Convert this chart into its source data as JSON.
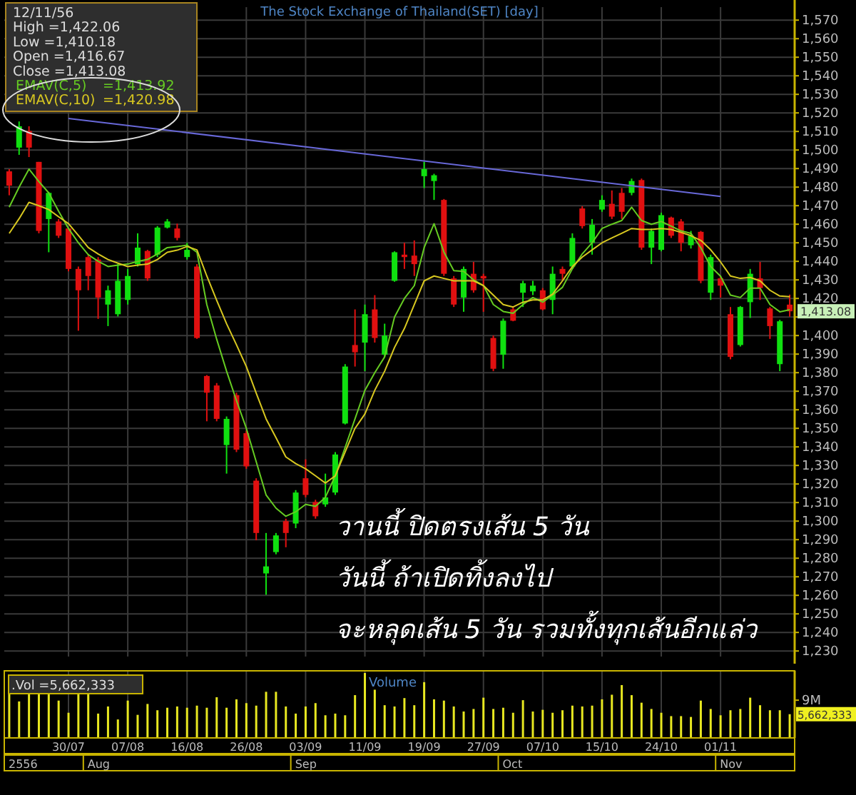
{
  "chart_data": [
    {
      "type": "candlestick",
      "title": "The Stock Exchange of Thailand(SET) [day]",
      "categories": [
        null,
        null,
        null,
        null,
        null,
        null,
        "30/07",
        null,
        null,
        null,
        null,
        null,
        "07/08",
        null,
        null,
        null,
        null,
        null,
        "16/08",
        null,
        null,
        null,
        null,
        null,
        "26/08",
        null,
        null,
        null,
        null,
        null,
        "03/09",
        null,
        null,
        null,
        null,
        null,
        "11/09",
        null,
        null,
        null,
        null,
        null,
        "19/09",
        null,
        null,
        null,
        null,
        null,
        "27/09",
        null,
        null,
        null,
        null,
        null,
        "07/10",
        null,
        null,
        null,
        null,
        null,
        "15/10",
        null,
        null,
        null,
        null,
        null,
        "24/10",
        null,
        null,
        null,
        null,
        null,
        "01/11",
        null,
        null,
        null,
        null,
        null,
        null,
        null
      ],
      "ohlc": [
        [
          1488.5,
          1489.7,
          1475.6,
          1480.8
        ],
        [
          1501.3,
          1515.4,
          1497.4,
          1512.8
        ],
        [
          1510.3,
          1512.8,
          1496.2,
          1501.3
        ],
        [
          1493.6,
          1493.6,
          1455.1,
          1456.4
        ],
        [
          1462.8,
          1477.4,
          1444.9,
          1476.9
        ],
        [
          1461.5,
          1462.8,
          1452.6,
          1453.8
        ],
        [
          1457.7,
          1458.2,
          1434.6,
          1435.9
        ],
        [
          1435.9,
          1437.2,
          1402.6,
          1424.4
        ],
        [
          1442.3,
          1443.6,
          1424.4,
          1432.1
        ],
        [
          1441.0,
          1442.3,
          1409.0,
          1420.5
        ],
        [
          1416.7,
          1426.9,
          1405.1,
          1424.4
        ],
        [
          1411.5,
          1438.5,
          1410.3,
          1429.5
        ],
        [
          1419.2,
          1435.9,
          1416.7,
          1432.1
        ],
        [
          1438.5,
          1455.1,
          1437.2,
          1447.4
        ],
        [
          1445.6,
          1446.2,
          1429.5,
          1430.8
        ],
        [
          1443.6,
          1459.0,
          1442.3,
          1458.2
        ],
        [
          1458.2,
          1462.8,
          1457.7,
          1461.5
        ],
        [
          1457.7,
          1460.3,
          1451.3,
          1452.6
        ],
        [
          1442.3,
          1450.0,
          1441.0,
          1446.2
        ],
        [
          1437.2,
          1438.5,
          1398.2,
          1398.7
        ],
        [
          1378.2,
          1378.7,
          1353.8,
          1369.2
        ],
        [
          1373.1,
          1374.4,
          1353.8,
          1355.1
        ],
        [
          1341.0,
          1356.4,
          1325.6,
          1355.1
        ],
        [
          1367.9,
          1369.2,
          1337.2,
          1338.5
        ],
        [
          1347.4,
          1348.7,
          1328.2,
          1329.5
        ],
        [
          1321.8,
          1323.1,
          1289.7,
          1293.6
        ],
        [
          1271.8,
          1293.6,
          1260.3,
          1275.6
        ],
        [
          1283.3,
          1293.6,
          1282.1,
          1292.3
        ],
        [
          1300.0,
          1301.3,
          1285.9,
          1293.6
        ],
        [
          1298.7,
          1316.7,
          1296.2,
          1315.4
        ],
        [
          1323.1,
          1333.3,
          1312.8,
          1314.1
        ],
        [
          1310.3,
          1311.5,
          1301.3,
          1302.6
        ],
        [
          1309.0,
          1325.6,
          1307.7,
          1312.8
        ],
        [
          1315.4,
          1337.2,
          1314.1,
          1335.9
        ],
        [
          1352.6,
          1384.6,
          1352.1,
          1383.3
        ],
        [
          1394.9,
          1414.1,
          1383.3,
          1391.0
        ],
        [
          1396.2,
          1416.7,
          1380.8,
          1411.5
        ],
        [
          1414.1,
          1421.8,
          1396.2,
          1398.7
        ],
        [
          1389.7,
          1406.4,
          1388.5,
          1400.0
        ],
        [
          1429.5,
          1445.4,
          1429.0,
          1444.9
        ],
        [
          1443.6,
          1450.0,
          1435.9,
          1442.3
        ],
        [
          1443.1,
          1451.3,
          1432.1,
          1438.5
        ],
        [
          1485.9,
          1493.6,
          1479.5,
          1489.7
        ],
        [
          1483.3,
          1487.2,
          1473.1,
          1486.4
        ],
        [
          1473.1,
          1473.6,
          1432.1,
          1433.3
        ],
        [
          1430.8,
          1432.1,
          1415.4,
          1416.7
        ],
        [
          1420.5,
          1437.2,
          1412.8,
          1435.9
        ],
        [
          1433.3,
          1439.7,
          1423.1,
          1424.4
        ],
        [
          1432.1,
          1433.3,
          1412.8,
          1430.8
        ],
        [
          1398.7,
          1400.0,
          1380.8,
          1382.1
        ],
        [
          1389.7,
          1409.2,
          1382.1,
          1408.0
        ],
        [
          1414.1,
          1415.4,
          1407.7,
          1408.0
        ],
        [
          1423.1,
          1429.5,
          1415.4,
          1428.2
        ],
        [
          1423.8,
          1429.5,
          1421.8,
          1426.9
        ],
        [
          1424.4,
          1425.6,
          1413.6,
          1414.1
        ],
        [
          1419.2,
          1437.2,
          1411.5,
          1433.3
        ],
        [
          1435.9,
          1437.2,
          1429.5,
          1433.3
        ],
        [
          1437.2,
          1455.1,
          1435.9,
          1452.6
        ],
        [
          1468.5,
          1469.7,
          1457.7,
          1459.0
        ],
        [
          1450.0,
          1462.8,
          1443.6,
          1459.7
        ],
        [
          1467.9,
          1475.6,
          1466.7,
          1473.1
        ],
        [
          1471.0,
          1478.2,
          1462.8,
          1464.1
        ],
        [
          1476.9,
          1479.5,
          1462.8,
          1466.7
        ],
        [
          1476.9,
          1484.6,
          1475.6,
          1483.3
        ],
        [
          1483.8,
          1484.6,
          1446.2,
          1447.4
        ],
        [
          1447.4,
          1457.7,
          1438.5,
          1456.4
        ],
        [
          1446.2,
          1466.2,
          1445.4,
          1464.9
        ],
        [
          1463.6,
          1464.1,
          1452.6,
          1453.8
        ],
        [
          1461.5,
          1462.8,
          1445.4,
          1450.0
        ],
        [
          1448.7,
          1456.4,
          1446.9,
          1453.8
        ],
        [
          1455.9,
          1456.4,
          1428.2,
          1429.5
        ],
        [
          1423.1,
          1443.6,
          1419.2,
          1442.3
        ],
        [
          1430.8,
          1432.1,
          1420.5,
          1426.9
        ],
        [
          1411.5,
          1415.4,
          1387.2,
          1388.5
        ],
        [
          1394.9,
          1415.9,
          1394.1,
          1415.4
        ],
        [
          1418.0,
          1435.9,
          1409.5,
          1433.3
        ],
        [
          1430.8,
          1439.7,
          1419.2,
          1425.6
        ],
        [
          1414.6,
          1415.4,
          1398.2,
          1405.1
        ],
        [
          1384.6,
          1408.5,
          1380.8,
          1407.7
        ],
        [
          1416.67,
          1422.06,
          1410.18,
          1413.08
        ]
      ],
      "colors": [
        "#e01010",
        "#10e010",
        "#e01010",
        "#e01010",
        "#10e010",
        "#e01010",
        "#e01010",
        "#e01010",
        "#e01010",
        "#e01010",
        "#10e010",
        "#10e010",
        "#10e010",
        "#10e010",
        "#e01010",
        "#10e010",
        "#10e010",
        "#e01010",
        "#10e010",
        "#e01010",
        "#e01010",
        "#e01010",
        "#10e010",
        "#e01010",
        "#e01010",
        "#e01010",
        "#10e010",
        "#10e010",
        "#e01010",
        "#10e010",
        "#e01010",
        "#e01010",
        "#10e010",
        "#10e010",
        "#10e010",
        "#e01010",
        "#10e010",
        "#e01010",
        "#10e010",
        "#10e010",
        "#e01010",
        "#e01010",
        "#10e010",
        "#10e010",
        "#e01010",
        "#e01010",
        "#10e010",
        "#e01010",
        "#e01010",
        "#e01010",
        "#10e010",
        "#e01010",
        "#10e010",
        "#10e010",
        "#e01010",
        "#10e010",
        "#e01010",
        "#10e010",
        "#e01010",
        "#10e010",
        "#10e010",
        "#e01010",
        "#e01010",
        "#10e010",
        "#e01010",
        "#10e010",
        "#10e010",
        "#e01010",
        "#e01010",
        "#10e010",
        "#e01010",
        "#10e010",
        "#e01010",
        "#e01010",
        "#10e010",
        "#10e010",
        "#e01010",
        "#e01010",
        "#10e010",
        "#e01010"
      ],
      "series": [
        {
          "name": "EMAV(C,5)",
          "type": "line",
          "color": "#66cc22",
          "values": [
            1469.2,
            1480,
            1489.7,
            1483,
            1476.9,
            1467,
            1457.7,
            1450,
            1443.6,
            1440,
            1437.2,
            1438,
            1438.5,
            1440,
            1441.0,
            1444,
            1447.4,
            1448,
            1448.7,
            1444.9,
            1416.7,
            1398,
            1380.8,
            1365,
            1350.0,
            1332,
            1314.1,
            1307,
            1302.6,
            1305,
            1309.0,
            1308,
            1312.8,
            1324.4,
            1339.7,
            1355.1,
            1370.5,
            1380,
            1388.5,
            1410,
            1420,
            1426.9,
            1447.4,
            1460.3,
            1445,
            1435,
            1434.6,
            1430,
            1427,
            1416.7,
            1413,
            1412,
            1416.7,
            1420.5,
            1418,
            1421.8,
            1426,
            1436,
            1444,
            1450,
            1457.7,
            1460,
            1462,
            1469.2,
            1462,
            1460,
            1461.5,
            1459,
            1456.4,
            1455.1,
            1447.4,
            1437.2,
            1432,
            1421.8,
            1420.5,
            1425.6,
            1425.6,
            1416.7,
            1412.8,
            1413.92
          ]
        },
        {
          "name": "EMAV(C,10)",
          "type": "line",
          "color": "#d8c820",
          "values": [
            1455.1,
            1463,
            1471.8,
            1470,
            1467.9,
            1464,
            1460.3,
            1454,
            1447.4,
            1444,
            1441.0,
            1439,
            1437.2,
            1438,
            1438.5,
            1441,
            1444.9,
            1446,
            1448.0,
            1446.2,
            1432.1,
            1419,
            1406.4,
            1395,
            1383.3,
            1369,
            1355.1,
            1345,
            1334.6,
            1331,
            1328.2,
            1324.4,
            1320.5,
            1324.4,
            1337.2,
            1350.0,
            1357.7,
            1370.5,
            1380.8,
            1393.6,
            1403.8,
            1416.7,
            1429.5,
            1432.1,
            1430.8,
            1429.5,
            1429.5,
            1429.5,
            1426.9,
            1421.8,
            1416.7,
            1415.4,
            1418.0,
            1419.2,
            1419.2,
            1422.3,
            1429.5,
            1437.2,
            1442.3,
            1446.2,
            1450.0,
            1452.6,
            1455.1,
            1457.7,
            1457.2,
            1457.2,
            1457.7,
            1457.2,
            1455.6,
            1453.8,
            1451.3,
            1446.2,
            1439.7,
            1432.1,
            1430.8,
            1431.3,
            1429.5,
            1424.4,
            1421.3,
            1420.98
          ]
        },
        {
          "type": "line",
          "color": "#6868d8",
          "x": [
            "30/07",
            "01/11"
          ],
          "values": [
            1517,
            1475
          ]
        }
      ],
      "ylim": [
        1227,
        1577
      ],
      "yticks": [
        {
          "value": 1230,
          "label": "1,230"
        },
        {
          "value": 1240,
          "label": "1,240"
        },
        {
          "value": 1250,
          "label": "1,250"
        },
        {
          "value": 1260,
          "label": "1,260"
        },
        {
          "value": 1270,
          "label": "1,270"
        },
        {
          "value": 1280,
          "label": "1,280"
        },
        {
          "value": 1290,
          "label": "1,290"
        },
        {
          "value": 1300,
          "label": "1,300"
        },
        {
          "value": 1310,
          "label": "1,310"
        },
        {
          "value": 1320,
          "label": "1,320"
        },
        {
          "value": 1330,
          "label": "1,330"
        },
        {
          "value": 1340,
          "label": "1,340"
        },
        {
          "value": 1350,
          "label": "1,350"
        },
        {
          "value": 1360,
          "label": "1,360"
        },
        {
          "value": 1370,
          "label": "1,370"
        },
        {
          "value": 1380,
          "label": "1,380"
        },
        {
          "value": 1390,
          "label": "1,390"
        },
        {
          "value": 1400,
          "label": "1,400"
        },
        {
          "value": 1410,
          "label": null
        },
        {
          "value": 1420,
          "label": "1,420"
        },
        {
          "value": 1430,
          "label": "1,430"
        },
        {
          "value": 1440,
          "label": "1,440"
        },
        {
          "value": 1450,
          "label": "1,450"
        },
        {
          "value": 1460,
          "label": "1,460"
        },
        {
          "value": 1470,
          "label": "1,470"
        },
        {
          "value": 1480,
          "label": "1,480"
        },
        {
          "value": 1490,
          "label": "1,490"
        },
        {
          "value": 1500,
          "label": "1,500"
        },
        {
          "value": 1510,
          "label": "1,510"
        },
        {
          "value": 1520,
          "label": "1,520"
        },
        {
          "value": 1530,
          "label": "1,530"
        },
        {
          "value": 1540,
          "label": "1,540"
        },
        {
          "value": 1550,
          "label": "1,550"
        },
        {
          "value": 1560,
          "label": "1,560"
        },
        {
          "value": 1570,
          "label": "1,570"
        }
      ],
      "grid": true,
      "legend": "top left",
      "tick_labels": "y",
      "annotations": [
        "12/11/56",
        "High =1,422.06",
        "Low =1,410.18",
        "Open =1,416.67",
        "Close =1,413.08",
        "=1,413.92",
        "=1,420.98",
        "1,413.08",
        "วานนี้ ปิดตรงเส้น 5 วัน",
        "วันนี้ ถ้าเปิดทิ้งลงไป",
        "จะหลุดเส้น 5 วัน รวมทั้งทุกเส้นอีกแล่ว"
      ]
    },
    {
      "type": "bar",
      "title": "Volume",
      "color": "#e8e820",
      "categories": [
        null,
        null,
        null,
        null,
        null,
        null,
        "30/07",
        null,
        null,
        null,
        null,
        null,
        "07/08",
        null,
        null,
        null,
        null,
        null,
        "16/08",
        null,
        null,
        null,
        null,
        null,
        "26/08",
        null,
        null,
        null,
        null,
        null,
        "03/09",
        null,
        null,
        null,
        null,
        null,
        "11/09",
        null,
        null,
        null,
        null,
        null,
        "19/09",
        null,
        null,
        null,
        null,
        null,
        "27/09",
        null,
        null,
        null,
        null,
        null,
        "07/10",
        null,
        null,
        null,
        null,
        null,
        "15/10",
        null,
        null,
        null,
        null,
        null,
        "24/10",
        null,
        null,
        null,
        null,
        null,
        "01/11",
        null,
        null,
        null,
        null,
        null,
        null,
        null
      ],
      "values": [
        10400000,
        8700000,
        10400000,
        10400000,
        10400000,
        8900000,
        6000000,
        10400000,
        10400000,
        5800000,
        7500000,
        4400000,
        8900000,
        5500000,
        8100000,
        6600000,
        7200000,
        7500000,
        7200000,
        7700000,
        7200000,
        9700000,
        7200000,
        9200000,
        8300000,
        7700000,
        11000000,
        11000000,
        7500000,
        5800000,
        7500000,
        8300000,
        5400000,
        5800000,
        5400000,
        10200000,
        15500000,
        11500000,
        7800000,
        7500000,
        9500000,
        7800000,
        13300000,
        9200000,
        8900000,
        7500000,
        6300000,
        6900000,
        9600000,
        6900000,
        7200000,
        6000000,
        9000000,
        6300000,
        6700000,
        6000000,
        6600000,
        7700000,
        7500000,
        7700000,
        9200000,
        10300000,
        12600000,
        10200000,
        8400000,
        6900000,
        6000000,
        5200000,
        5200000,
        5000000,
        8900000,
        6900000,
        5400000,
        6600000,
        6900000,
        9600000,
        7800000,
        6600000,
        6600000,
        5662333
      ],
      "ylim": [
        0,
        16000000
      ],
      "yticks": [
        {
          "value": 9000000,
          "label": "9M"
        }
      ],
      "grid": "x",
      "annotations": [
        ".Vol =5,662,333",
        "5,662,333",
        "2556",
        "Aug",
        "Sep",
        "Oct",
        "Nov"
      ]
    }
  ]
}
